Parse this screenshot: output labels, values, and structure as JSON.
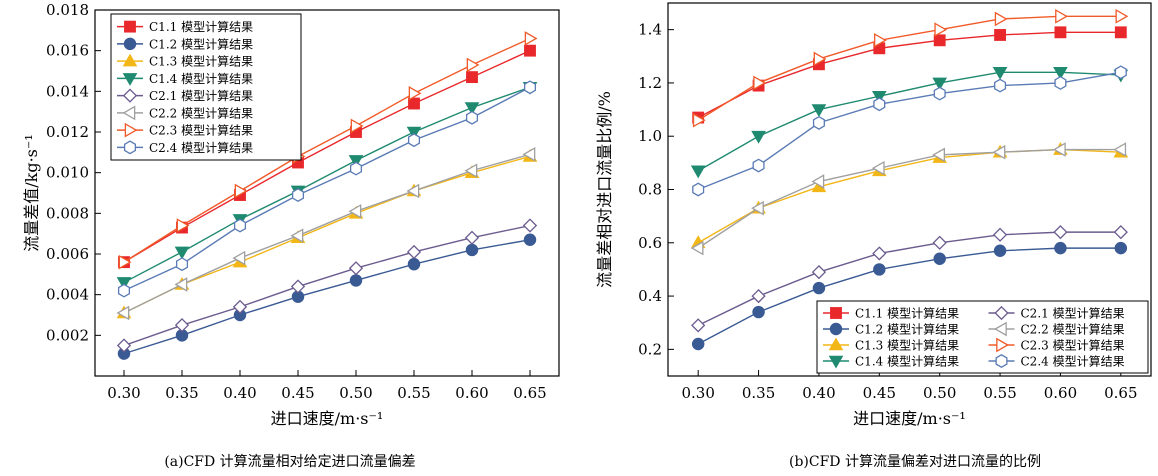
{
  "chart_data": [
    {
      "type": "line",
      "caption": "(a)CFD 计算流量相对给定进口流量偏差",
      "xlabel": "进口速度/m·s⁻¹",
      "ylabel": "流量差值/kg·s⁻¹",
      "x": [
        0.3,
        0.35,
        0.4,
        0.45,
        0.5,
        0.55,
        0.6,
        0.65
      ],
      "xticks": [
        "0.30",
        "0.35",
        "0.40",
        "0.45",
        "0.50",
        "0.55",
        "0.60",
        "0.65"
      ],
      "xlim": [
        0.275,
        0.675
      ],
      "ylim": [
        0,
        0.018
      ],
      "yticks": [
        "0.002",
        "0.004",
        "0.006",
        "0.008",
        "0.010",
        "0.012",
        "0.014",
        "0.016",
        "0.018"
      ],
      "legend_position": "top-left",
      "series": [
        {
          "name": "C1.1 模型计算结果",
          "color": "#e8282b",
          "marker": "square",
          "filled": true,
          "values": [
            0.0056,
            0.0073,
            0.0089,
            0.0105,
            0.012,
            0.0134,
            0.0147,
            0.016
          ]
        },
        {
          "name": "C1.2 模型计算结果",
          "color": "#3a5a94",
          "marker": "circle",
          "filled": true,
          "values": [
            0.0011,
            0.002,
            0.003,
            0.0039,
            0.0047,
            0.0055,
            0.0062,
            0.0067
          ]
        },
        {
          "name": "C1.3 模型计算结果",
          "color": "#f2b616",
          "marker": "triangle-up",
          "filled": true,
          "values": [
            0.0031,
            0.0045,
            0.0056,
            0.0068,
            0.008,
            0.0091,
            0.01,
            0.0108
          ]
        },
        {
          "name": "C1.4 模型计算结果",
          "color": "#1f8a70",
          "marker": "triangle-down",
          "filled": true,
          "values": [
            0.0046,
            0.0061,
            0.0077,
            0.0091,
            0.0106,
            0.012,
            0.0132,
            0.0142
          ]
        },
        {
          "name": "C2.1 模型计算结果",
          "color": "#6b5b8e",
          "marker": "diamond",
          "filled": false,
          "values": [
            0.0015,
            0.0025,
            0.0034,
            0.0044,
            0.0053,
            0.0061,
            0.0068,
            0.0074
          ]
        },
        {
          "name": "C2.2 模型计算结果",
          "color": "#a0a0a0",
          "marker": "triangle-left",
          "filled": false,
          "values": [
            0.0031,
            0.0045,
            0.0058,
            0.0069,
            0.0081,
            0.0091,
            0.0101,
            0.0109
          ]
        },
        {
          "name": "C2.3 模型计算结果",
          "color": "#f15a29",
          "marker": "triangle-right",
          "filled": false,
          "values": [
            0.0056,
            0.0074,
            0.0091,
            0.0108,
            0.0123,
            0.0139,
            0.0153,
            0.0166
          ]
        },
        {
          "name": "C2.4 模型计算结果",
          "color": "#5a7bb5",
          "marker": "hexagon",
          "filled": false,
          "values": [
            0.0042,
            0.0055,
            0.0074,
            0.0089,
            0.0102,
            0.0116,
            0.0127,
            0.0142
          ]
        }
      ]
    },
    {
      "type": "line",
      "caption": "(b)CFD 计算流量偏差对进口流量的比例",
      "xlabel": "进口速度/m·s⁻¹",
      "ylabel": "流量差相对进口流量比例/%",
      "x": [
        0.3,
        0.35,
        0.4,
        0.45,
        0.5,
        0.55,
        0.6,
        0.65
      ],
      "xticks": [
        "0.30",
        "0.35",
        "0.40",
        "0.45",
        "0.50",
        "0.55",
        "0.60",
        "0.65"
      ],
      "xlim": [
        0.275,
        0.675
      ],
      "ylim": [
        0.1,
        1.5
      ],
      "yticks": [
        "0.2",
        "0.4",
        "0.6",
        "0.8",
        "1.0",
        "1.2",
        "1.4"
      ],
      "legend_position": "bottom-right",
      "series": [
        {
          "name": "C1.1 模型计算结果",
          "color": "#e8282b",
          "marker": "square",
          "filled": true,
          "values": [
            1.07,
            1.19,
            1.27,
            1.33,
            1.36,
            1.38,
            1.39,
            1.39
          ]
        },
        {
          "name": "C1.2 模型计算结果",
          "color": "#3a5a94",
          "marker": "circle",
          "filled": true,
          "values": [
            0.22,
            0.34,
            0.43,
            0.5,
            0.54,
            0.57,
            0.58,
            0.58
          ]
        },
        {
          "name": "C1.3 模型计算结果",
          "color": "#f2b616",
          "marker": "triangle-up",
          "filled": true,
          "values": [
            0.6,
            0.73,
            0.81,
            0.87,
            0.92,
            0.94,
            0.95,
            0.94
          ]
        },
        {
          "name": "C1.4 模型计算结果",
          "color": "#1f8a70",
          "marker": "triangle-down",
          "filled": true,
          "values": [
            0.87,
            1.0,
            1.1,
            1.15,
            1.2,
            1.24,
            1.24,
            1.23
          ]
        },
        {
          "name": "C2.1 模型计算结果",
          "color": "#6b5b8e",
          "marker": "diamond",
          "filled": false,
          "values": [
            0.29,
            0.4,
            0.49,
            0.56,
            0.6,
            0.63,
            0.64,
            0.64
          ]
        },
        {
          "name": "C2.2 模型计算结果",
          "color": "#a0a0a0",
          "marker": "triangle-left",
          "filled": false,
          "values": [
            0.58,
            0.73,
            0.83,
            0.88,
            0.93,
            0.94,
            0.95,
            0.95
          ]
        },
        {
          "name": "C2.3 模型计算结果",
          "color": "#f15a29",
          "marker": "triangle-right",
          "filled": false,
          "values": [
            1.06,
            1.2,
            1.29,
            1.36,
            1.4,
            1.44,
            1.45,
            1.45
          ]
        },
        {
          "name": "C2.4 模型计算结果",
          "color": "#5a7bb5",
          "marker": "hexagon",
          "filled": false,
          "values": [
            0.8,
            0.89,
            1.05,
            1.12,
            1.16,
            1.19,
            1.2,
            1.24
          ]
        }
      ]
    }
  ]
}
